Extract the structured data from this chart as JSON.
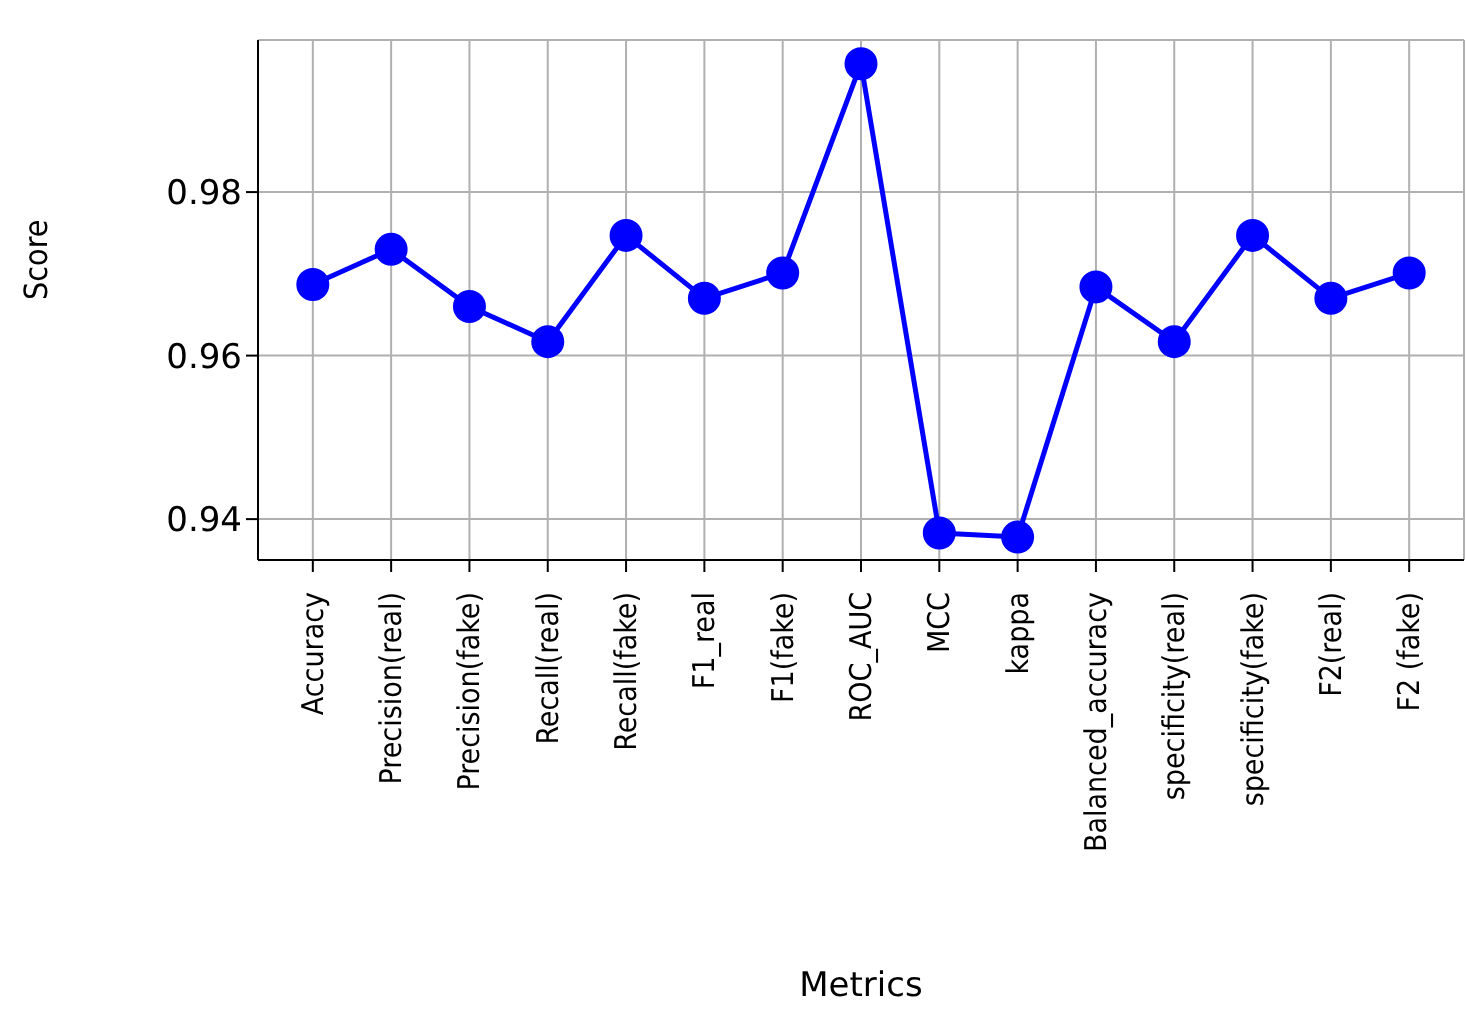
{
  "chart_data": {
    "type": "line",
    "xlabel": "Metrics",
    "ylabel": "Score",
    "categories": [
      "Accuracy",
      "Precision(real)",
      "Precision(fake)",
      "Recall(real)",
      "Recall(fake)",
      "F1_real",
      "F1(fake)",
      "ROC_AUC",
      "MCC",
      "kappa",
      "Balanced_accuracy",
      "specificity(real)",
      "specificity(fake)",
      "F2(real)",
      "F2 (fake)"
    ],
    "series": [
      {
        "color": "#0000ff",
        "values": [
          0.9687,
          0.973,
          0.966,
          0.9617,
          0.9747,
          0.967,
          0.9701,
          0.9957,
          0.9383,
          0.9378,
          0.9684,
          0.9617,
          0.9747,
          0.967,
          0.9701
        ]
      }
    ],
    "ylim": [
      0.935,
      0.9986
    ],
    "yticks": [
      0.94,
      0.96,
      0.98
    ],
    "grid": true,
    "marker": "circle",
    "line_style": "solid"
  }
}
